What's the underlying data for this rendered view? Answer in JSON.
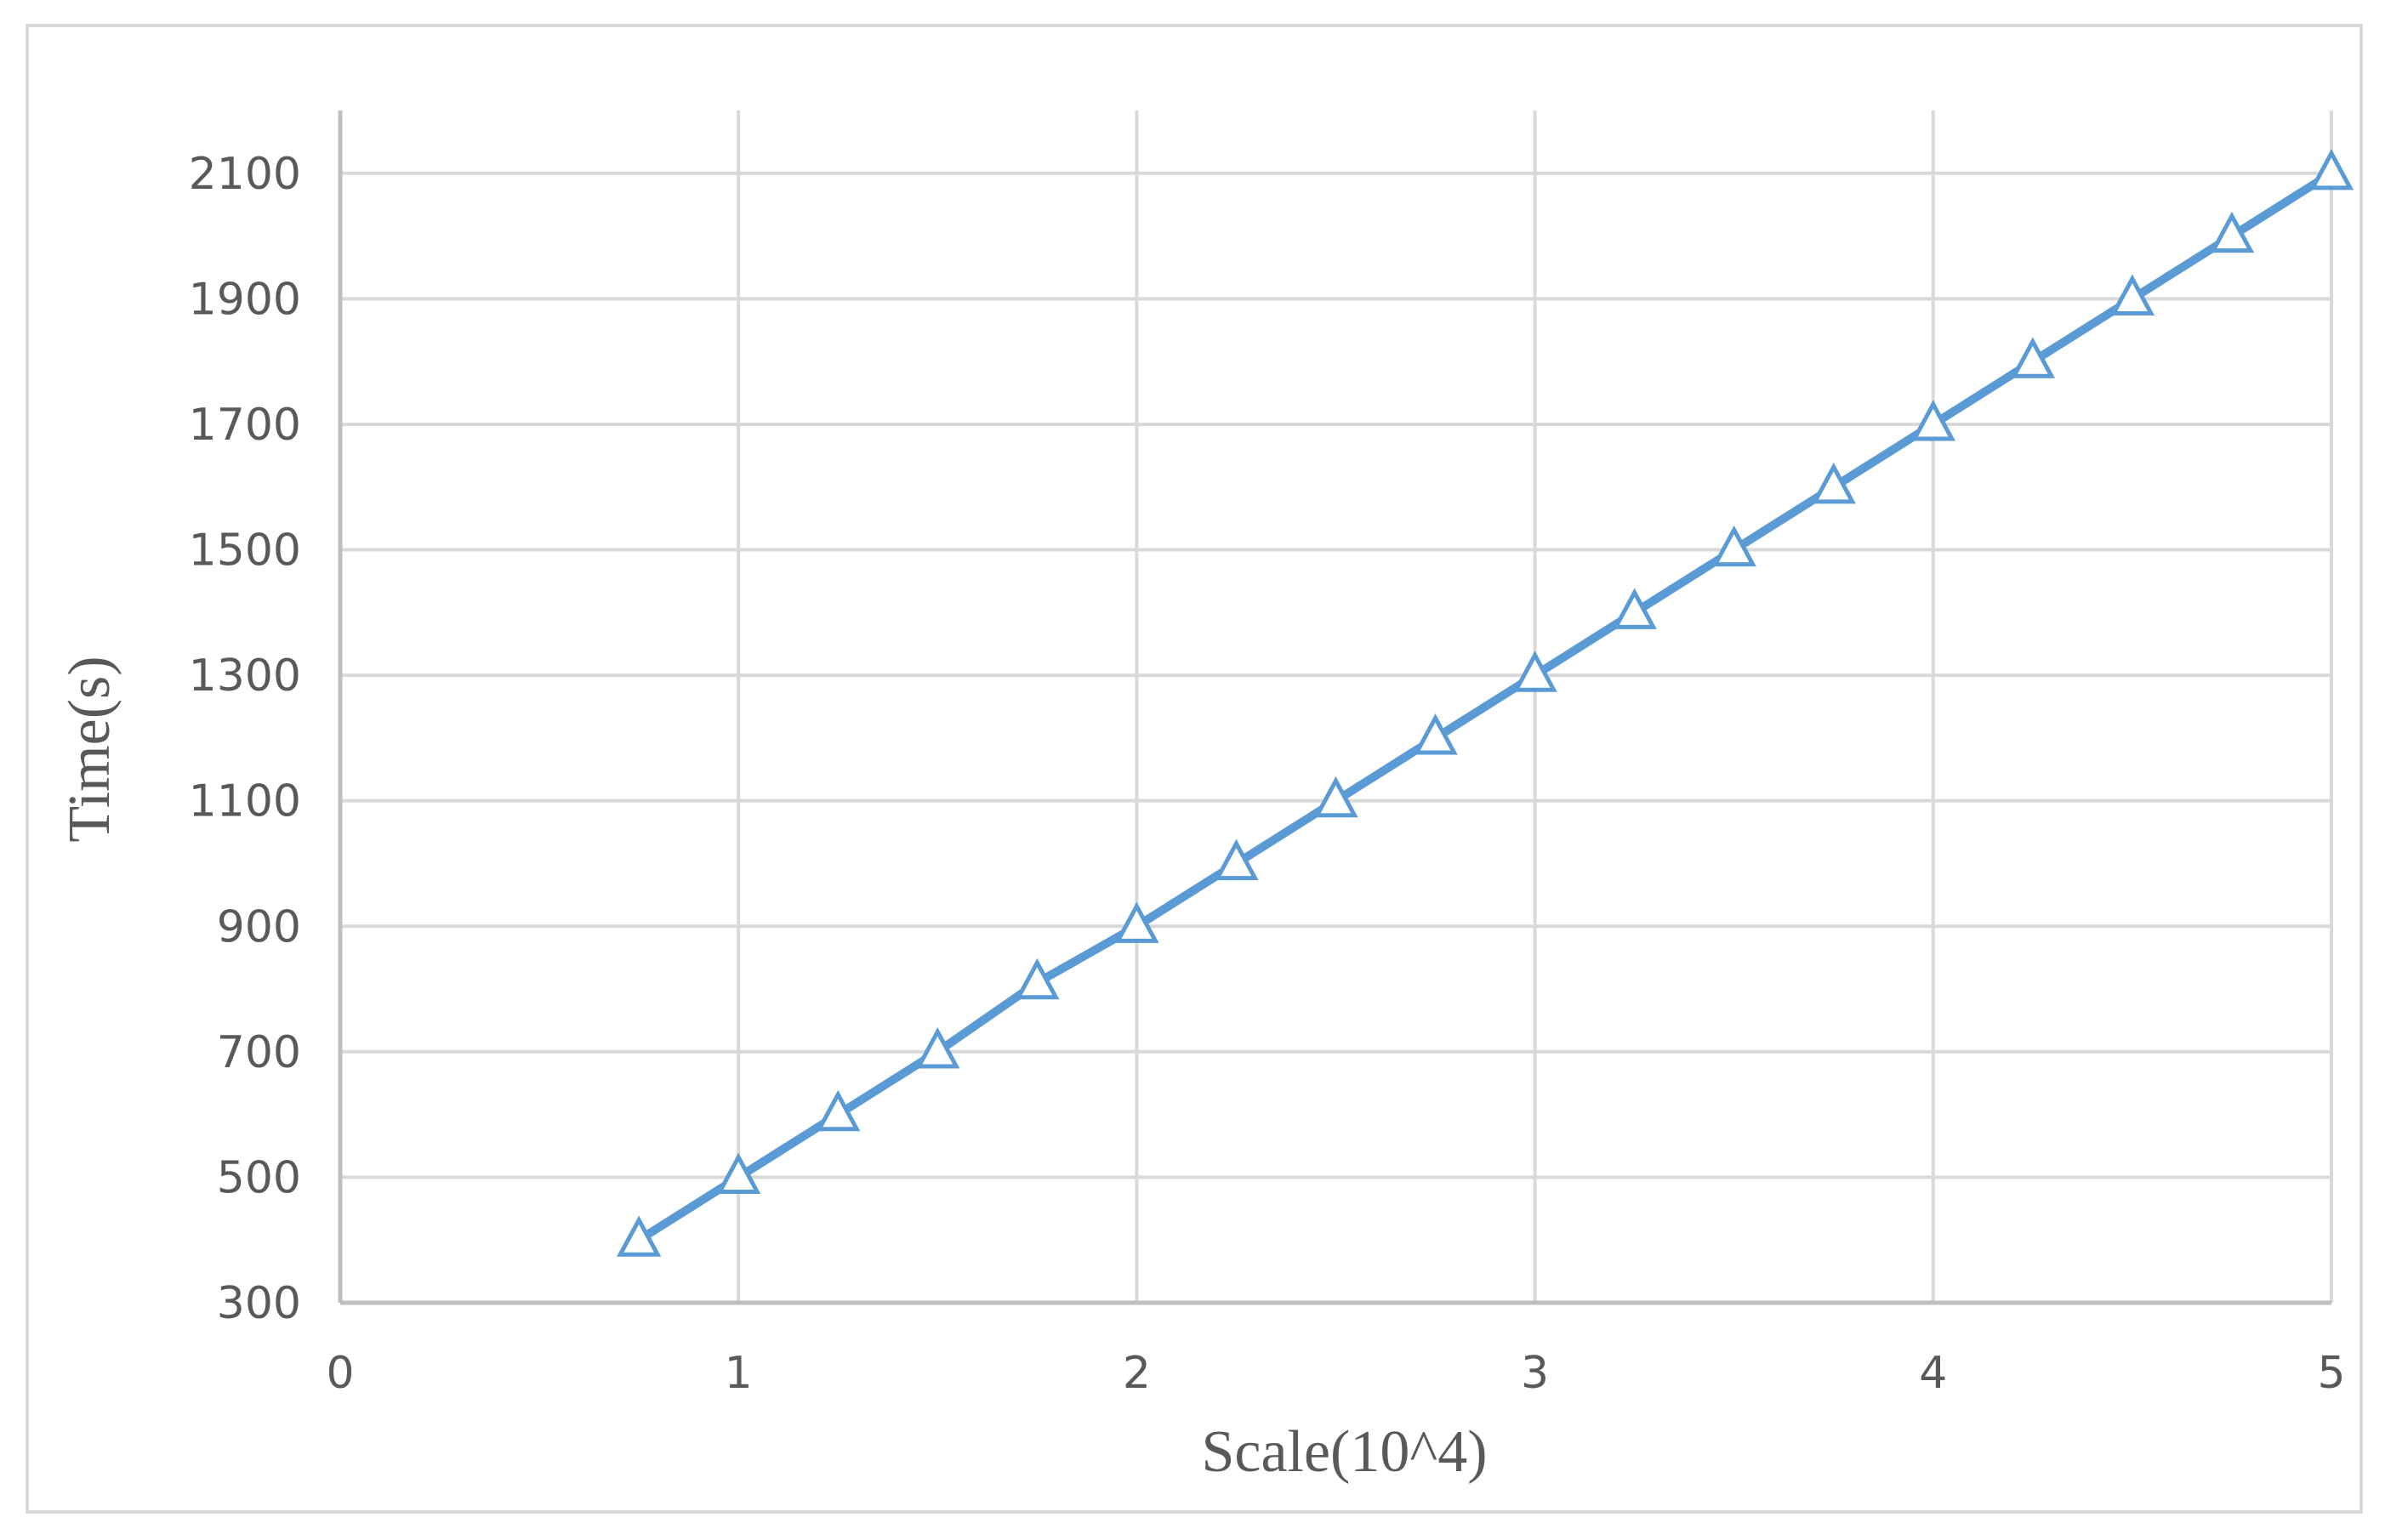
{
  "chart_data": {
    "type": "line",
    "title": "",
    "xlabel": "Scale(10^4)",
    "ylabel": "Time(s)",
    "xlim": [
      0,
      5
    ],
    "ylim": [
      300,
      2200
    ],
    "x_ticks": [
      0,
      1,
      2,
      3,
      4,
      5
    ],
    "y_ticks": [
      300,
      500,
      700,
      900,
      1100,
      1300,
      1500,
      1700,
      1900,
      2100
    ],
    "grid": true,
    "legend": "none",
    "series": [
      {
        "color": "#5b9bd5",
        "marker": "triangle-open",
        "x": [
          0.75,
          1.0,
          1.25,
          1.5,
          1.75,
          2.0,
          2.25,
          2.5,
          2.75,
          3.0,
          3.25,
          3.5,
          3.75,
          4.0,
          4.25,
          4.5,
          4.75,
          5.0
        ],
        "y": [
          400,
          500,
          600,
          700,
          810,
          900,
          1000,
          1100,
          1200,
          1300,
          1400,
          1500,
          1600,
          1700,
          1800,
          1900,
          2000,
          2100
        ]
      }
    ]
  },
  "colors": {
    "grid": "#d9d9d9",
    "axis": "#bfbfbf",
    "text": "#595959"
  }
}
